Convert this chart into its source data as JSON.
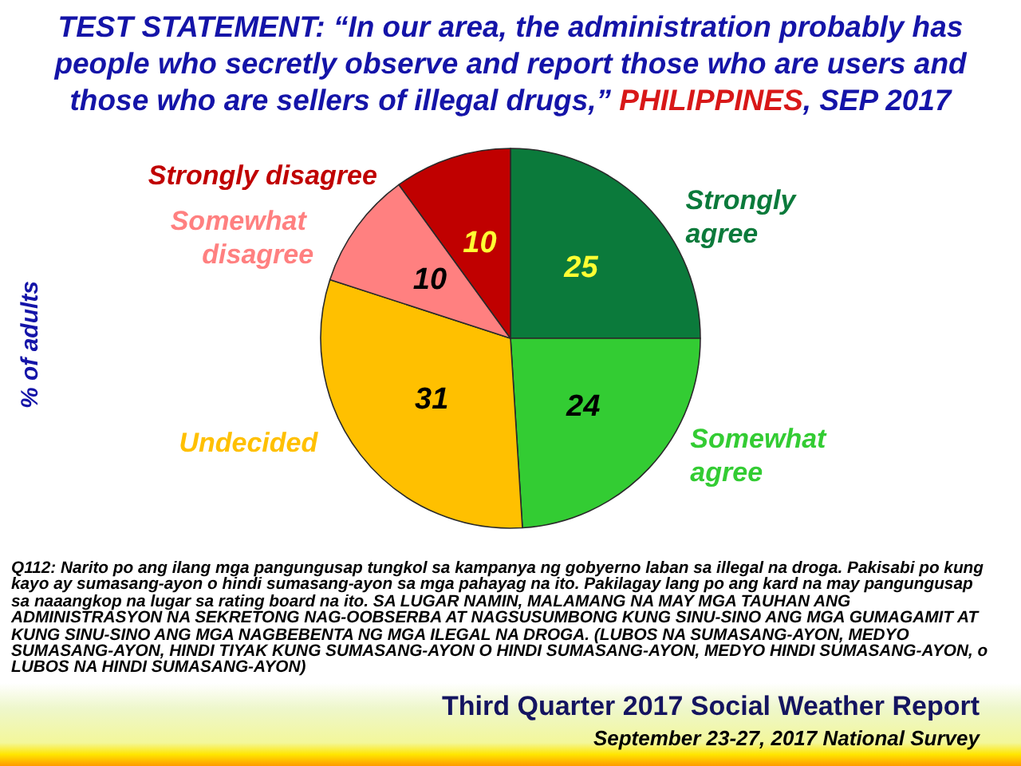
{
  "chart_data": {
    "type": "pie",
    "title": "TEST STATEMENT: “In our area, the administration probably has people who secretly observe and report those who are users and those who are sellers of illegal drugs,”",
    "subtitle": "PHILIPPINES, SEP 2017",
    "ylabel": "% of adults",
    "categories": [
      "Strongly agree",
      "Somewhat agree",
      "Undecided",
      "Somewhat disagree",
      "Strongly disagree"
    ],
    "values": [
      25,
      24,
      31,
      10,
      10
    ],
    "colors": [
      "#0b7a3b",
      "#33cc33",
      "#ffc000",
      "#ff8080",
      "#c00000"
    ],
    "data_labels": true,
    "annotations": [
      "Q112: Narito po ang ilang mga pangungusap tungkol sa kampanya ng gobyerno laban sa illegal na droga. Pakisabi po kung kayo ay sumasang-ayon o hindi sumasang-ayon sa mga pahayag na ito. Pakilagay lang po ang kard na may pangungusap sa naaangkop na lugar sa rating board na ito. SA LUGAR NAMIN, MALAMANG NA MAY MGA TAUHAN ANG ADMINISTRASYON NA SEKRETONG NAG-OOBSERBA AT NAGSUSUMBONG KUNG SINU-SINO ANG MGA GUMAGAMIT AT KUNG SINU-SINO ANG MGA NAGBEBENTA NG MGA ILEGAL NA DROGA. (LUBOS NA SUMASANG-AYON, MEDYO SUMASANG-AYON, HINDI TIYAK KUNG SUMASANG-AYON O HINDI SUMASANG-AYON, MEDYO HINDI SUMASANG-AYON, o LUBOS NA HINDI SUMASANG-AYON)",
      "Third Quarter 2017 Social Weather Report",
      "September 23-27, 2017 National Survey"
    ]
  }
}
